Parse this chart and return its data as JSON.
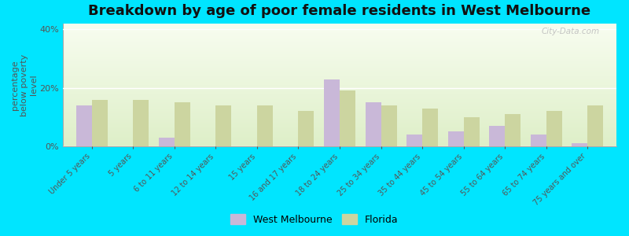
{
  "title": "Breakdown by age of poor female residents in West Melbourne",
  "ylabel": "percentage\nbelow poverty\nlevel",
  "categories": [
    "Under 5 years",
    "5 years",
    "6 to 11 years",
    "12 to 14 years",
    "15 years",
    "16 and 17 years",
    "18 to 24 years",
    "25 to 34 years",
    "35 to 44 years",
    "45 to 54 years",
    "55 to 64 years",
    "65 to 74 years",
    "75 years and over"
  ],
  "west_melbourne": [
    14,
    0,
    3,
    0,
    0,
    0,
    23,
    15,
    4,
    5,
    7,
    4,
    1
  ],
  "florida": [
    16,
    16,
    15,
    14,
    14,
    12,
    19,
    14,
    13,
    10,
    11,
    12,
    14
  ],
  "wm_color": "#c9b8d8",
  "fl_color": "#ccd5a0",
  "background_top": "#f0f8e8",
  "background_bottom": "#e0f0d0",
  "outer_background": "#00e5ff",
  "ylim": [
    0,
    42
  ],
  "yticks": [
    0,
    20,
    40
  ],
  "ytick_labels": [
    "0%",
    "20%",
    "40%"
  ],
  "bar_width": 0.38,
  "title_fontsize": 13,
  "axis_label_fontsize": 8,
  "tick_fontsize": 8,
  "legend_labels": [
    "West Melbourne",
    "Florida"
  ],
  "watermark": "City-Data.com"
}
